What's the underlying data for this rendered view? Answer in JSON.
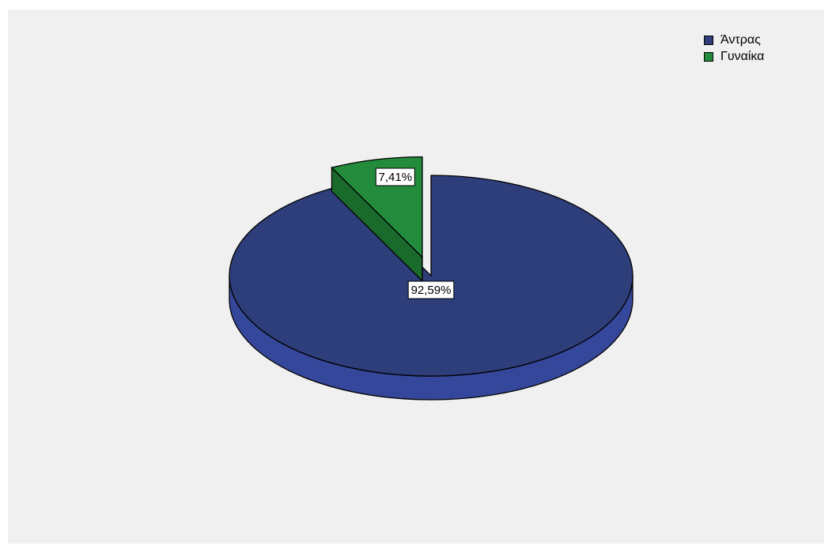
{
  "chart_data": {
    "type": "pie",
    "title": "",
    "categories": [
      "Άντρας",
      "Γυναίκα"
    ],
    "values": [
      92.59,
      7.41
    ],
    "data_labels": [
      "92,59%",
      "7,41%"
    ],
    "colors": [
      "#2e3e7b",
      "#238b3c"
    ],
    "side_colors": [
      "#34479a",
      "#1a6a2c"
    ],
    "exploded": [
      false,
      true
    ],
    "legend_position": "top-right",
    "background": "#f0f0f0"
  }
}
